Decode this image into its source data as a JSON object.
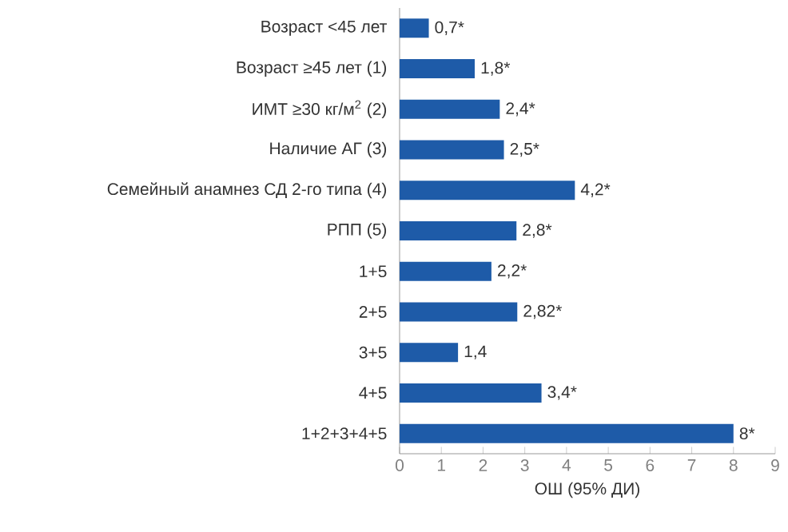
{
  "chart_data": {
    "type": "bar",
    "orientation": "horizontal",
    "xlabel": "ОШ (95% ДИ)",
    "categories": [
      "Возраст <45 лет",
      "Возраст ≥45 лет (1)",
      "ИМТ ≥30 кг/м$^{2}$ (2)",
      "Наличие АГ (3)",
      "Семейный анамнез СД 2-го типа (4)",
      "РПП (5)",
      "1+5",
      "2+5",
      "3+5",
      "4+5",
      "1+2+3+4+5"
    ],
    "values": [
      0.7,
      1.8,
      2.4,
      2.5,
      4.2,
      2.8,
      2.2,
      2.82,
      1.4,
      3.4,
      8
    ],
    "value_labels": [
      "0,7*",
      "1,8*",
      "2,4*",
      "2,5*",
      "4,2*",
      "2,8*",
      "2,2*",
      "2,82*",
      "1,4",
      "3,4*",
      "8*"
    ],
    "color": "#1e5ba8",
    "xlim": [
      0,
      9
    ],
    "xticks": [
      0,
      1,
      2,
      3,
      4,
      5,
      6,
      7,
      8,
      9
    ]
  }
}
